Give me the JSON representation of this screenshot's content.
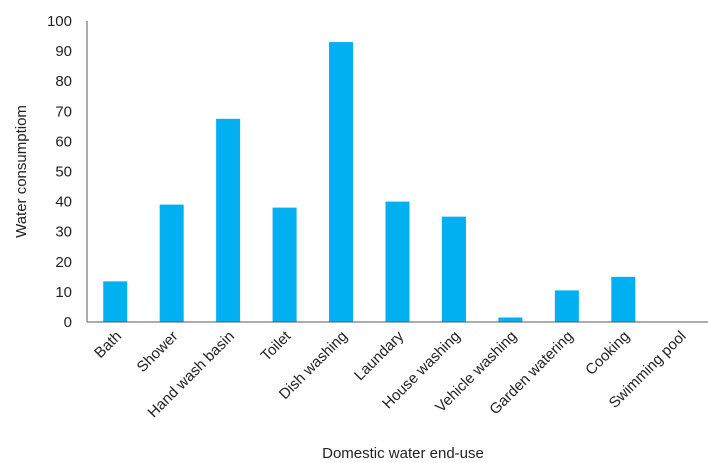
{
  "chart_data": {
    "type": "bar",
    "title": "",
    "xlabel": "Domestic water end-use",
    "ylabel": "Water consumptiom",
    "ylim": [
      0,
      100
    ],
    "yticks": [
      0,
      10,
      20,
      30,
      40,
      50,
      60,
      70,
      80,
      90,
      100
    ],
    "yticks_labels": [
      "0",
      "10",
      "20",
      "30",
      "40",
      "50",
      "60",
      "70",
      "80",
      "90",
      "100"
    ],
    "grid": false,
    "legend": "none",
    "bar_color": "#00b0f0",
    "categories": [
      "Bath",
      "Shower",
      "Hand wash basin",
      "Toilet",
      "Dish washing",
      "Laundary",
      "House washing",
      "Vehicle washing",
      "Garden watering",
      "Cooking",
      "Swimming pool"
    ],
    "values": [
      13.5,
      39,
      67.5,
      38,
      93,
      40,
      35,
      1.5,
      10.5,
      15,
      0
    ]
  }
}
